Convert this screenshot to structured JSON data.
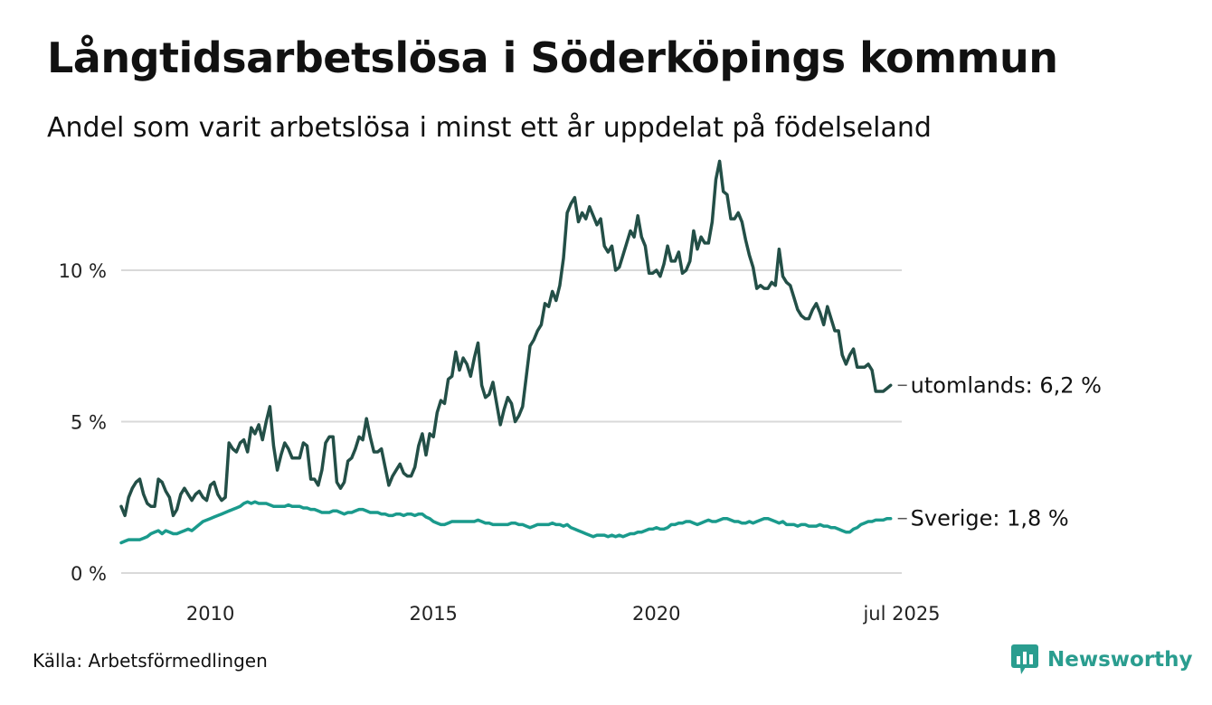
{
  "title": "Långtidsarbetslösa i Söderköpings kommun",
  "subtitle": "Andel som varit arbetslösa i minst ett år uppdelat på födelseland",
  "source": "Källa: Arbetsförmedlingen",
  "brand": {
    "name": "Newsworthy",
    "icon": "newsworthy-chart-bubble-icon",
    "color": "#2a9d8f"
  },
  "chart_data": {
    "type": "line",
    "x_start": "2008-01",
    "x_end": "2025-07",
    "x_interval": "monthly",
    "x_ticks": [
      "2010",
      "2015",
      "2020",
      "jul 2025"
    ],
    "y_ticks": [
      "0 %",
      "5 %",
      "10 %"
    ],
    "ylim": [
      0,
      14
    ],
    "grid": "horizontal",
    "series": [
      {
        "name": "utomlands",
        "end_label": "utomlands: 6,2 %",
        "color": "#234f47",
        "values": [
          2.2,
          1.9,
          2.5,
          2.8,
          3.0,
          3.1,
          2.6,
          2.3,
          2.2,
          2.2,
          3.1,
          3.0,
          2.7,
          2.5,
          1.9,
          2.1,
          2.6,
          2.8,
          2.6,
          2.4,
          2.6,
          2.7,
          2.5,
          2.4,
          2.9,
          3.0,
          2.6,
          2.4,
          2.5,
          4.3,
          4.1,
          4.0,
          4.3,
          4.4,
          4.0,
          4.8,
          4.6,
          4.9,
          4.4,
          5.0,
          5.5,
          4.2,
          3.4,
          3.9,
          4.3,
          4.1,
          3.8,
          3.8,
          3.8,
          4.3,
          4.2,
          3.1,
          3.1,
          2.9,
          3.4,
          4.3,
          4.5,
          4.5,
          3.0,
          2.8,
          3.0,
          3.7,
          3.8,
          4.1,
          4.5,
          4.4,
          5.1,
          4.5,
          4.0,
          4.0,
          4.1,
          3.5,
          2.9,
          3.2,
          3.4,
          3.6,
          3.3,
          3.2,
          3.2,
          3.5,
          4.2,
          4.6,
          3.9,
          4.6,
          4.5,
          5.3,
          5.7,
          5.6,
          6.4,
          6.5,
          7.3,
          6.7,
          7.1,
          6.9,
          6.5,
          7.1,
          7.6,
          6.2,
          5.8,
          5.9,
          6.3,
          5.6,
          4.9,
          5.4,
          5.8,
          5.6,
          5.0,
          5.2,
          5.5,
          6.5,
          7.5,
          7.7,
          8.0,
          8.2,
          8.9,
          8.8,
          9.3,
          9.0,
          9.5,
          10.4,
          11.9,
          12.2,
          12.4,
          11.6,
          11.9,
          11.7,
          12.1,
          11.8,
          11.5,
          11.7,
          10.8,
          10.6,
          10.8,
          10.0,
          10.1,
          10.5,
          10.9,
          11.3,
          11.1,
          11.8,
          11.1,
          10.8,
          9.9,
          9.9,
          10.0,
          9.8,
          10.2,
          10.8,
          10.3,
          10.3,
          10.6,
          9.9,
          10.0,
          10.3,
          11.3,
          10.7,
          11.1,
          10.9,
          10.9,
          11.6,
          13.0,
          13.6,
          12.6,
          12.5,
          11.7,
          11.7,
          11.9,
          11.6,
          11.0,
          10.5,
          10.1,
          9.4,
          9.5,
          9.4,
          9.4,
          9.6,
          9.5,
          10.7,
          9.8,
          9.6,
          9.5,
          9.1,
          8.7,
          8.5,
          8.4,
          8.4,
          8.7,
          8.9,
          8.6,
          8.2,
          8.8,
          8.4,
          8.0,
          8.0,
          7.2,
          6.9,
          7.2,
          7.4,
          6.8,
          6.8,
          6.8,
          6.9,
          6.7,
          6.0,
          6.0,
          6.0,
          6.1,
          6.2
        ]
      },
      {
        "name": "Sverige",
        "end_label": "Sverige: 1,8 %",
        "color": "#1a9a8c",
        "values": [
          1.0,
          1.05,
          1.1,
          1.1,
          1.1,
          1.1,
          1.15,
          1.2,
          1.3,
          1.35,
          1.4,
          1.3,
          1.4,
          1.35,
          1.3,
          1.3,
          1.35,
          1.4,
          1.45,
          1.4,
          1.5,
          1.6,
          1.7,
          1.75,
          1.8,
          1.85,
          1.9,
          1.95,
          2.0,
          2.05,
          2.1,
          2.15,
          2.2,
          2.3,
          2.35,
          2.3,
          2.35,
          2.3,
          2.3,
          2.3,
          2.25,
          2.2,
          2.2,
          2.2,
          2.2,
          2.25,
          2.2,
          2.2,
          2.2,
          2.15,
          2.15,
          2.1,
          2.1,
          2.05,
          2.0,
          2.0,
          2.0,
          2.05,
          2.05,
          2.0,
          1.95,
          2.0,
          2.0,
          2.05,
          2.1,
          2.1,
          2.05,
          2.0,
          2.0,
          2.0,
          1.95,
          1.95,
          1.9,
          1.9,
          1.95,
          1.95,
          1.9,
          1.95,
          1.95,
          1.9,
          1.95,
          1.95,
          1.85,
          1.8,
          1.7,
          1.65,
          1.6,
          1.6,
          1.65,
          1.7,
          1.7,
          1.7,
          1.7,
          1.7,
          1.7,
          1.7,
          1.75,
          1.7,
          1.65,
          1.65,
          1.6,
          1.6,
          1.6,
          1.6,
          1.6,
          1.65,
          1.65,
          1.6,
          1.6,
          1.55,
          1.5,
          1.55,
          1.6,
          1.6,
          1.6,
          1.6,
          1.65,
          1.6,
          1.6,
          1.55,
          1.6,
          1.5,
          1.45,
          1.4,
          1.35,
          1.3,
          1.25,
          1.2,
          1.25,
          1.25,
          1.25,
          1.2,
          1.25,
          1.2,
          1.25,
          1.2,
          1.25,
          1.3,
          1.3,
          1.35,
          1.35,
          1.4,
          1.45,
          1.45,
          1.5,
          1.45,
          1.45,
          1.5,
          1.6,
          1.6,
          1.65,
          1.65,
          1.7,
          1.7,
          1.65,
          1.6,
          1.65,
          1.7,
          1.75,
          1.7,
          1.7,
          1.75,
          1.8,
          1.8,
          1.75,
          1.7,
          1.7,
          1.65,
          1.65,
          1.7,
          1.65,
          1.7,
          1.75,
          1.8,
          1.8,
          1.75,
          1.7,
          1.65,
          1.7,
          1.6,
          1.6,
          1.6,
          1.55,
          1.6,
          1.6,
          1.55,
          1.55,
          1.55,
          1.6,
          1.55,
          1.55,
          1.5,
          1.5,
          1.45,
          1.4,
          1.35,
          1.35,
          1.45,
          1.5,
          1.6,
          1.65,
          1.7,
          1.7,
          1.75,
          1.75,
          1.75,
          1.8,
          1.8
        ]
      }
    ]
  }
}
